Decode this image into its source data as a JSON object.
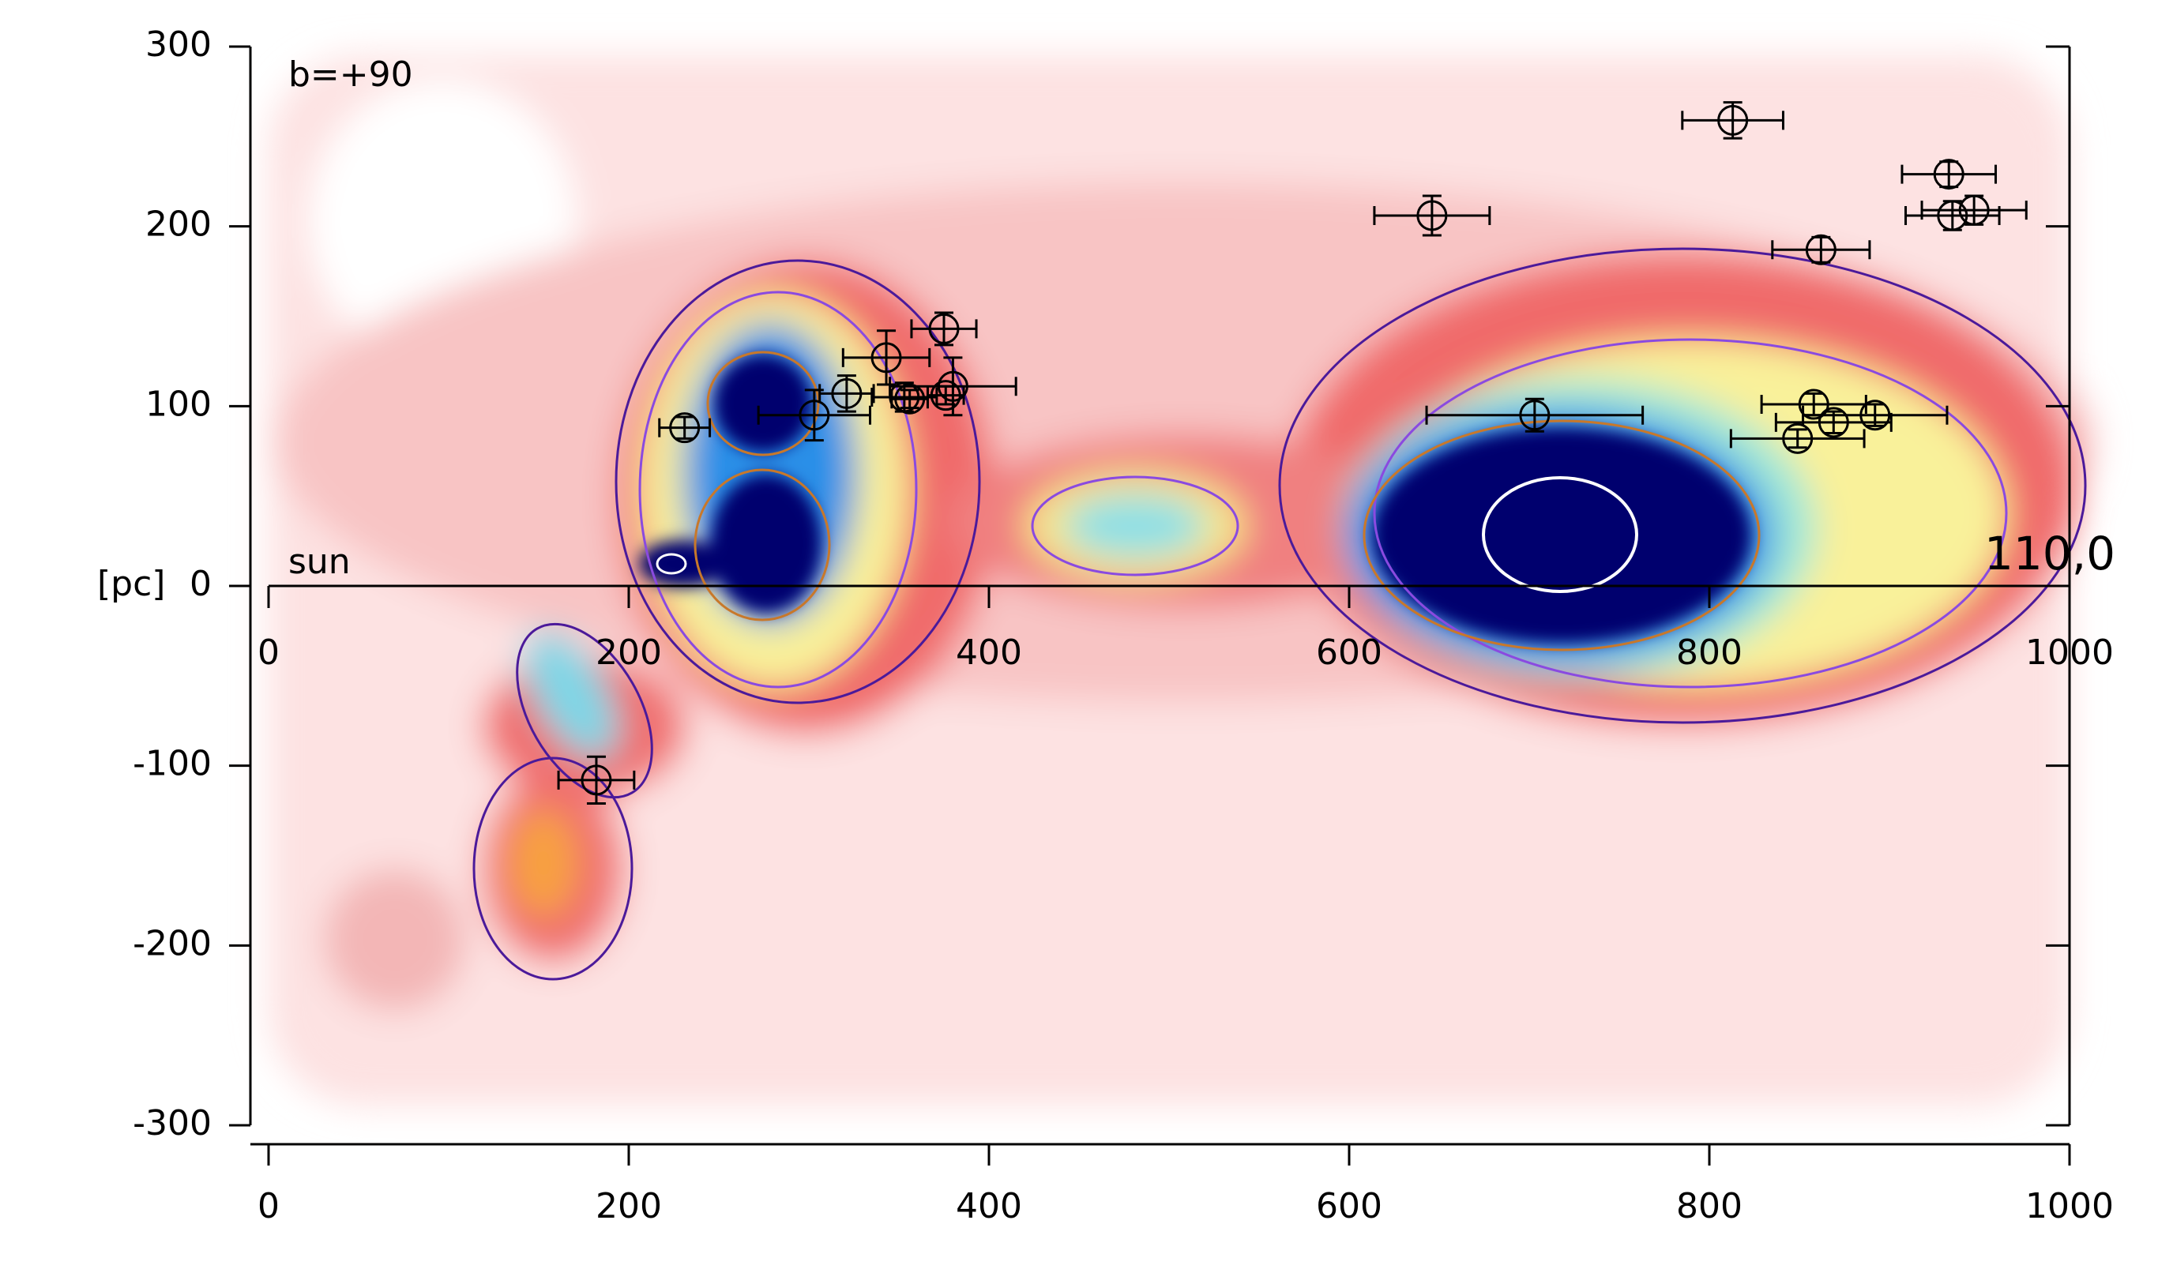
{
  "chart_data": {
    "type": "scatter",
    "title": "b=+90",
    "y_label": "[pc]",
    "annotations": [
      "sun",
      "110,0"
    ],
    "x": [
      231,
      303,
      321,
      343,
      353,
      356,
      375,
      380,
      376,
      182,
      646,
      703,
      813,
      862,
      858,
      849,
      869,
      892,
      933,
      935,
      947
    ],
    "values": [
      88,
      95,
      107,
      127,
      105,
      104,
      143,
      111,
      106,
      -108,
      206,
      95,
      259,
      187,
      101,
      82,
      91,
      95,
      229,
      206,
      209
    ],
    "xerr": [
      14,
      31,
      15,
      24,
      18,
      10,
      18,
      35,
      10,
      21,
      32,
      60,
      28,
      27,
      29,
      37,
      32,
      40,
      26,
      26,
      29
    ],
    "yerr": [
      6,
      14,
      10,
      15,
      8,
      5,
      9,
      16,
      5,
      13,
      11,
      9,
      10,
      7,
      6,
      5,
      6,
      6,
      7,
      8,
      8
    ],
    "color": "#000000",
    "xlim": [
      0,
      1000
    ],
    "ylim": [
      -300,
      300
    ],
    "xticks": [
      0,
      200,
      400,
      600,
      800,
      1000
    ],
    "yticks": [
      -300,
      -200,
      -100,
      0,
      100,
      200,
      300
    ]
  }
}
